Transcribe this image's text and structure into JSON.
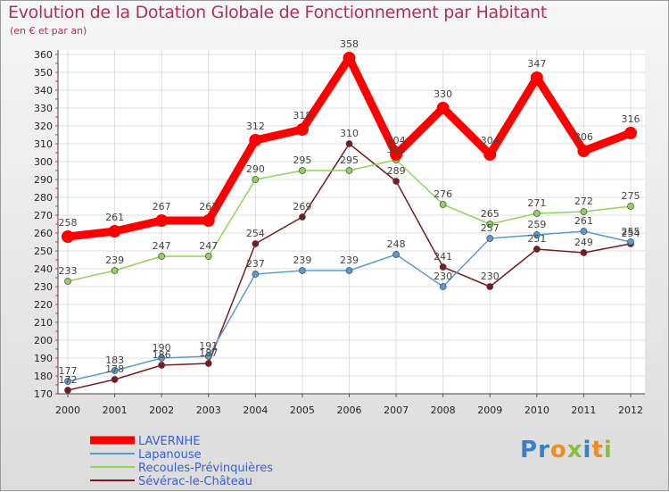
{
  "title": "Evolution de la Dotation Globale de Fonctionnement par Habitant",
  "subtitle": "(en € et par an)",
  "logo": {
    "text": "Proxiti",
    "colors": [
      "#3a7fc8",
      "#3a7fc8",
      "#f08a24",
      "#8ac040",
      "#3a7fc8",
      "#f08a24",
      "#8ac040"
    ]
  },
  "chart_data": {
    "type": "line",
    "x": [
      "2000",
      "2001",
      "2002",
      "2003",
      "2004",
      "2005",
      "2006",
      "2007",
      "2008",
      "2009",
      "2010",
      "2011",
      "2012"
    ],
    "ylim": [
      170,
      360
    ],
    "y_ticks": [
      170,
      180,
      190,
      200,
      210,
      220,
      230,
      240,
      250,
      260,
      270,
      280,
      290,
      300,
      310,
      320,
      330,
      340,
      350,
      360
    ],
    "grid": true,
    "legend_placement": "bottom-left",
    "series": [
      {
        "name": "LAVERNHE",
        "color": "#ff0000",
        "values": [
          258,
          261,
          267,
          267,
          312,
          318,
          358,
          304,
          330,
          304,
          347,
          306,
          316
        ]
      },
      {
        "name": "Lapanouse",
        "color": "#5b9bd5",
        "values": [
          177,
          183,
          190,
          191,
          237,
          239,
          239,
          248,
          230,
          257,
          259,
          261,
          255
        ]
      },
      {
        "name": "Recoules-Prévinquières",
        "color": "#8fd45a",
        "values": [
          233,
          239,
          247,
          247,
          290,
          295,
          295,
          301,
          276,
          265,
          271,
          272,
          275
        ]
      },
      {
        "name": "Sévérac-le-Château",
        "color": "#7a1a22",
        "values": [
          172,
          178,
          186,
          187,
          254,
          269,
          310,
          289,
          241,
          230,
          251,
          249,
          254
        ]
      }
    ]
  }
}
